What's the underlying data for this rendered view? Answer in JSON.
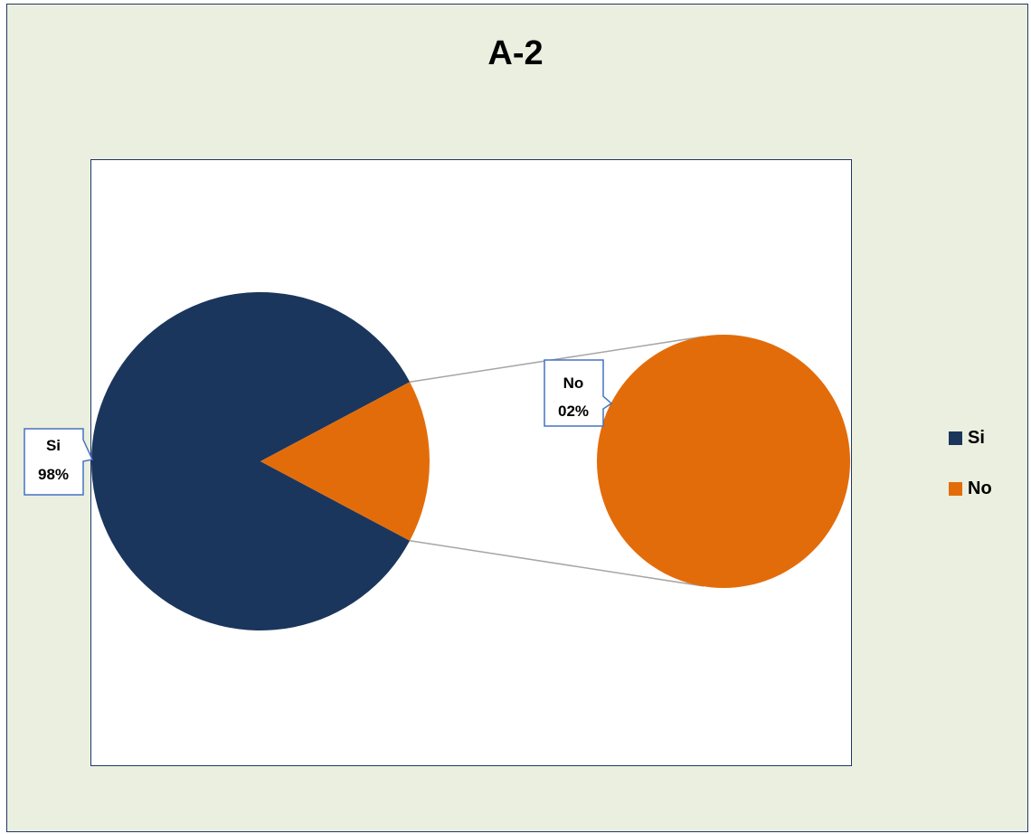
{
  "chart_data": {
    "type": "pie",
    "title": "A-2",
    "categories": [
      "Si",
      "No"
    ],
    "values": [
      98,
      2
    ],
    "series": [
      {
        "name": "Si",
        "value": 98,
        "label_pct": "98%",
        "color": "#1b365d"
      },
      {
        "name": "No",
        "value": 2,
        "label_pct": "02%",
        "color": "#e36c0a"
      }
    ],
    "pie_style": "pie-of-pie",
    "legend_position": "right"
  },
  "colors": {
    "outer_background": "#ebefdf",
    "border": "#1f3864",
    "connector": "#a6a6a6",
    "label_border": "#4472c4"
  }
}
